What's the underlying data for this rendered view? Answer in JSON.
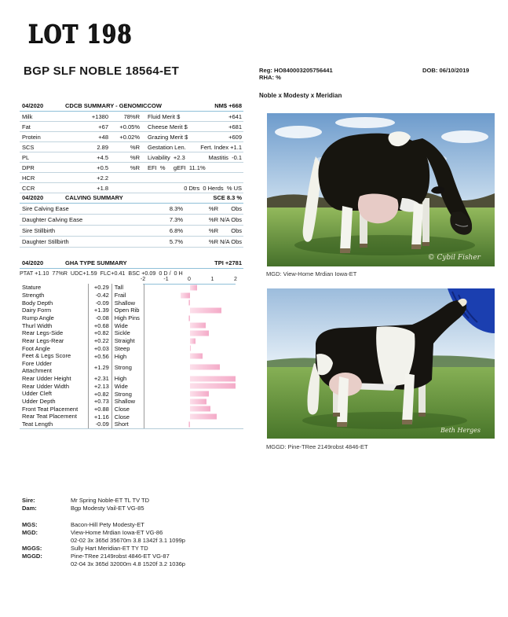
{
  "lot": {
    "title": "LOT 198"
  },
  "animal": {
    "name": "BGP SLF NOBLE 18564-ET",
    "reg_line": "Reg: HO840003205756441",
    "rha_line": "RHA: %",
    "dob_line": "DOB: 06/10/2019",
    "cross": "Noble x Modesty x Meridian"
  },
  "cdcb": {
    "date": "04/2020",
    "title": "CDCB SUMMARY - GENOMICCOW",
    "nm": "NM$ +668",
    "rows": [
      {
        "c0": "Milk",
        "c1": "+1380",
        "c2": "78%R",
        "c3": "Fluid Merit $",
        "c4": "+641"
      },
      {
        "c0": "Fat",
        "c1": "+67",
        "c2": "+0.05%",
        "c3": "Cheese Merit $",
        "c4": "+681"
      },
      {
        "c0": "Protein",
        "c1": "+48",
        "c2": "+0.02%",
        "c3": "Grazing Merit $",
        "c4": "+609"
      },
      {
        "c0": "SCS",
        "c1": "2.89",
        "c2": "%R",
        "c3": "Gestation Len.",
        "c4": "Fert. Index +1.1"
      },
      {
        "c0": "PL",
        "c1": "+4.5",
        "c2": "%R",
        "c3": "Livability  +2.3",
        "c4": "Mastitis  -0.1"
      },
      {
        "c0": "DPR",
        "c1": "+0.5",
        "c2": "%R",
        "c3": "EFI  %     gEFI  11.1%",
        "c4": ""
      },
      {
        "c0": "HCR",
        "c1": "+2.2",
        "c2": "",
        "c3": "",
        "c4": ""
      },
      {
        "c0": "CCR",
        "c1": "+1.8",
        "c2": "",
        "c3": "",
        "c4": "0 Dtrs  0 Herds  % US"
      }
    ]
  },
  "calving": {
    "date": "04/2020",
    "title": "CALVING SUMMARY",
    "sce": "SCE 8.3 %",
    "rows": [
      {
        "label": "Sire Calving Ease",
        "value": "8.3%",
        "rel": "%R",
        "obs": "Obs"
      },
      {
        "label": "Daughter Calving Ease",
        "value": "7.3%",
        "rel": "%R",
        "obs": "N/A Obs"
      },
      {
        "label": "Sire Stillbirth",
        "value": "6.8%",
        "rel": "%R",
        "obs": "Obs"
      },
      {
        "label": "Daughter Stillbirth",
        "value": "5.7%",
        "rel": "%R",
        "obs": "N/A Obs"
      }
    ]
  },
  "gha": {
    "date": "04/2020",
    "title": "GHA TYPE SUMMARY",
    "tpi": "TPI +2781",
    "subline": "PTAT +1.10  77%R  UDC+1.59  FLC+0.41  BSC +0.09  0 D /  0 H",
    "scale": [
      "-2",
      "-1",
      "0",
      "1",
      "2"
    ]
  },
  "chart_data": {
    "type": "bar",
    "title": "GHA TYPE SUMMARY linear traits",
    "xlim": [
      -2,
      2
    ],
    "xticks": [
      -2,
      -1,
      0,
      1,
      2
    ],
    "bar_color": "#f4abc8",
    "traits": [
      {
        "name": "Stature",
        "value": 0.29,
        "label": "+0.29",
        "desc": "Tall"
      },
      {
        "name": "Strength",
        "value": -0.42,
        "label": "-0.42",
        "desc": "Frail"
      },
      {
        "name": "Body Depth",
        "value": -0.09,
        "label": "-0.09",
        "desc": "Shallow"
      },
      {
        "name": "Dairy Form",
        "value": 1.39,
        "label": "+1.39",
        "desc": "Open Rib"
      },
      {
        "name": "Rump Angle",
        "value": -0.08,
        "label": "-0.08",
        "desc": "High Pins"
      },
      {
        "name": "Thurl Width",
        "value": 0.68,
        "label": "+0.68",
        "desc": "Wide"
      },
      {
        "name": "Rear Legs-Side",
        "value": 0.82,
        "label": "+0.82",
        "desc": "Sickle"
      },
      {
        "name": "Rear Legs-Rear",
        "value": 0.22,
        "label": "+0.22",
        "desc": "Straight"
      },
      {
        "name": "Foot Angle",
        "value": 0.03,
        "label": "+0.03",
        "desc": "Steep"
      },
      {
        "name": "Feet & Legs Score",
        "value": 0.56,
        "label": "+0.56",
        "desc": "High"
      },
      {
        "name": "Fore Udder\nAttachment",
        "value": 1.29,
        "label": "+1.29",
        "desc": "Strong",
        "tall": true
      },
      {
        "name": "Rear Udder Height",
        "value": 2.31,
        "label": "+2.31",
        "desc": "High"
      },
      {
        "name": "Rear Udder Width",
        "value": 2.13,
        "label": "+2.13",
        "desc": "Wide"
      },
      {
        "name": "Udder Cleft",
        "value": 0.82,
        "label": "+0.82",
        "desc": "Strong"
      },
      {
        "name": "Udder Depth",
        "value": 0.73,
        "label": "+0.73",
        "desc": "Shallow"
      },
      {
        "name": "Front Teat Placement",
        "value": 0.88,
        "label": "+0.88",
        "desc": "Close"
      },
      {
        "name": "Rear Teat Placement",
        "value": 1.16,
        "label": "+1.16",
        "desc": "Close"
      },
      {
        "name": "Teat Length",
        "value": -0.09,
        "label": "-0.09",
        "desc": "Short"
      }
    ]
  },
  "photos": {
    "mgd": {
      "caption": "MGD: View-Home Mrdian Iowa-ET",
      "credit": "© Cybil Fisher"
    },
    "mggd": {
      "caption": "MGGD: Pine-TRee 2149robst 4846-ET",
      "credit": "Beth Herges"
    }
  },
  "pedigree": {
    "group1": [
      {
        "label": "Sire:",
        "text": "Mr Spring Noble-ET TL TV TD"
      },
      {
        "label": "Dam:",
        "text": "Bgp Modesty Vail-ET VG-85"
      }
    ],
    "group2": [
      {
        "label": "MGS:",
        "text": "Bacon-Hill Pety Modesty-ET"
      },
      {
        "label": "MGD:",
        "text": "View-Home Mrdian Iowa-ET VG-86"
      },
      {
        "label": "",
        "text": "02-02 3x 365d 35670m 3.8 1342f 3.1 1099p"
      },
      {
        "label": "MGGS:",
        "text": "Sully Hart Meridian-ET TY TD"
      },
      {
        "label": "MGGD:",
        "text": "Pine-TRee 2149robst 4846-ET VG-87"
      },
      {
        "label": "",
        "text": "02-04 3x 365d 32000m 4.8 1520f 3.2 1036p"
      }
    ]
  }
}
